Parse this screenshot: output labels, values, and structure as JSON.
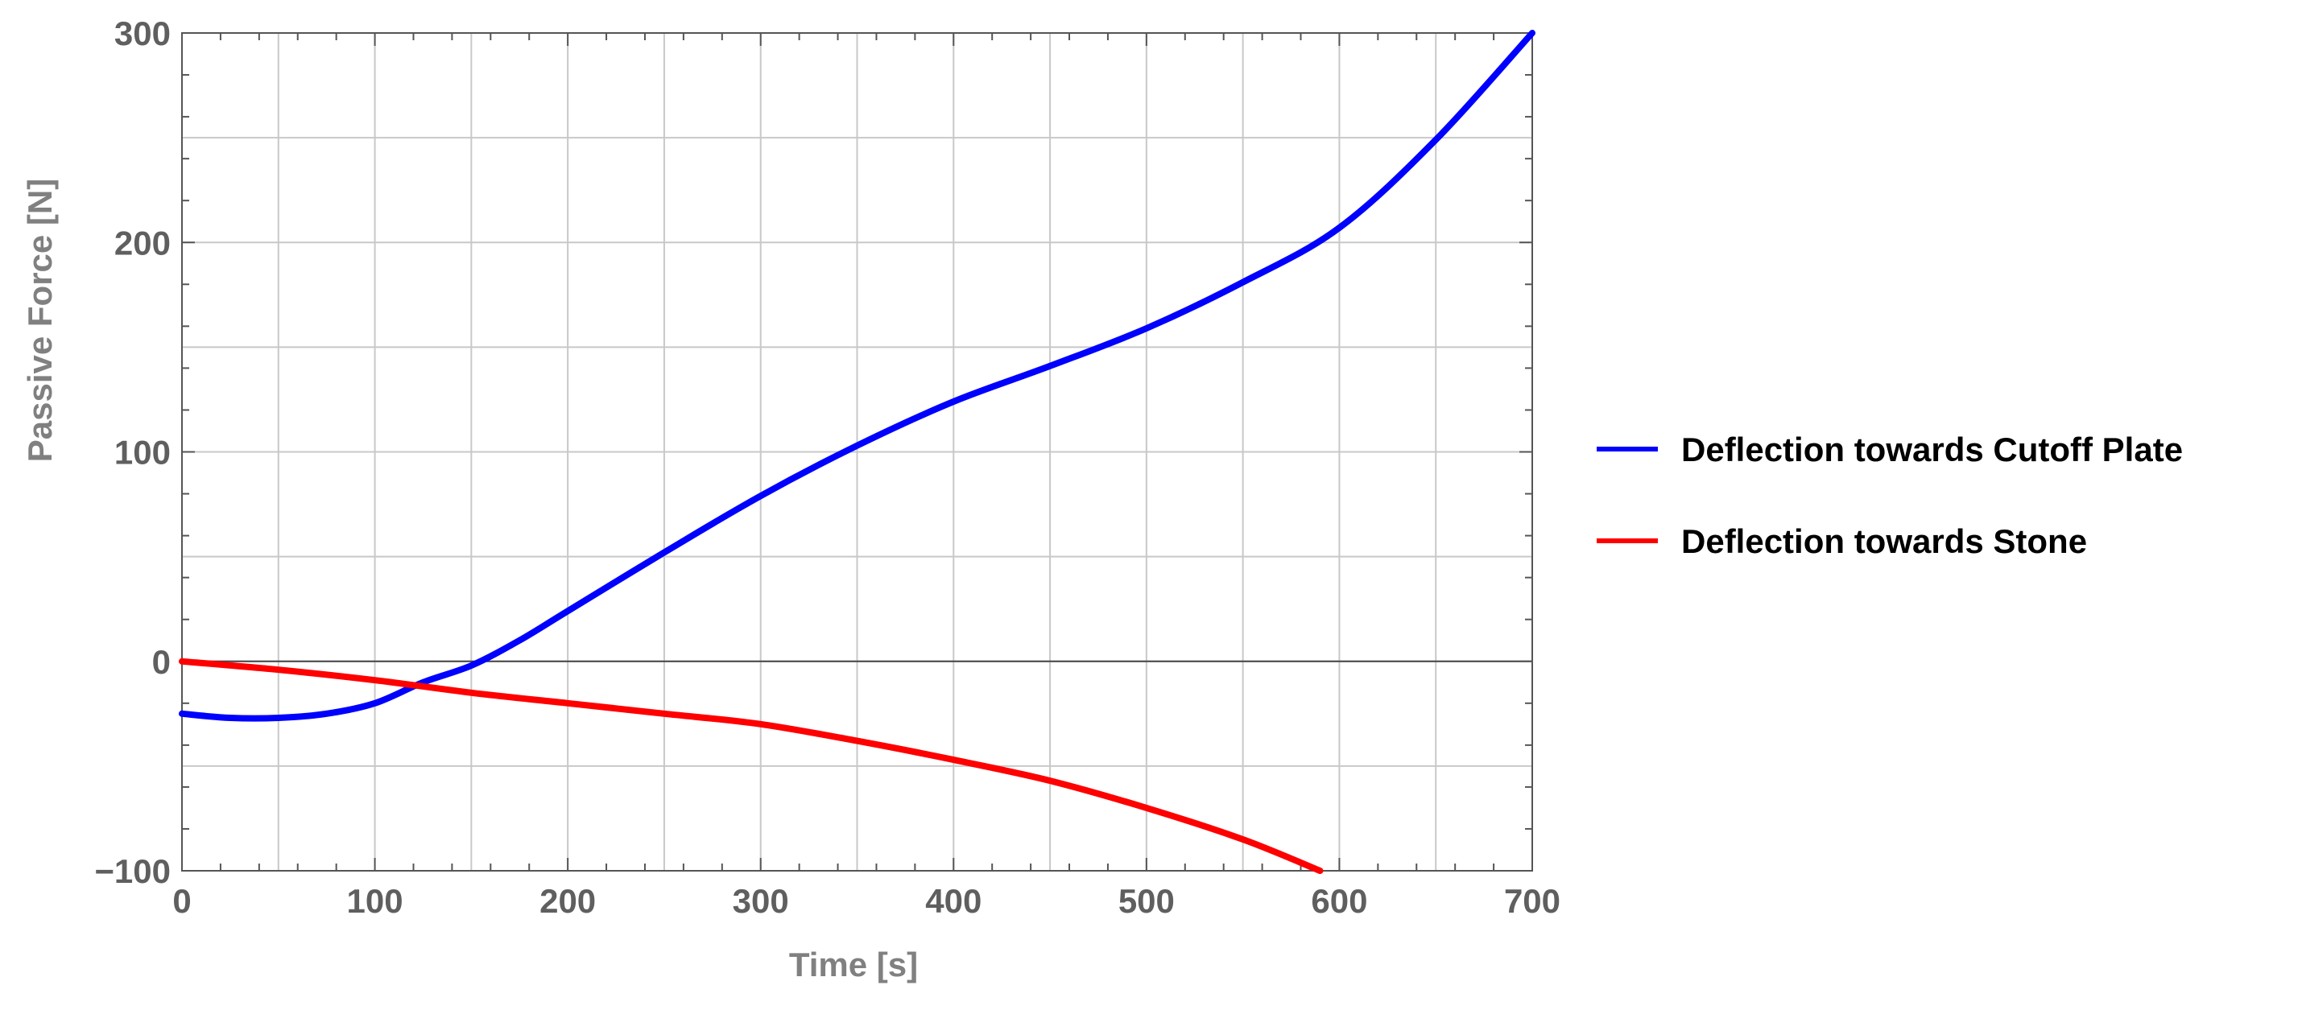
{
  "chart_data": {
    "type": "line",
    "title": "",
    "xlabel": "Time [s]",
    "ylabel": "Passive Force [N]",
    "xlim": [
      0,
      700
    ],
    "ylim": [
      -100,
      300
    ],
    "x_ticks": [
      "0",
      "100",
      "200",
      "300",
      "400",
      "500",
      "600",
      "700"
    ],
    "y_ticks": [
      "−100",
      "0",
      "100",
      "200",
      "300"
    ],
    "grid": true,
    "legend_position": "right",
    "series": [
      {
        "name": "Deflection towards Cutoff Plate",
        "color": "#0000ff",
        "x": [
          0,
          25,
          50,
          75,
          100,
          125,
          150,
          175,
          200,
          250,
          300,
          350,
          400,
          450,
          500,
          550,
          600,
          650,
          700
        ],
        "y": [
          -25,
          -27,
          -27,
          -25,
          -20,
          -10,
          -2,
          10,
          24,
          52,
          79,
          103,
          124,
          141,
          159,
          181,
          207,
          249,
          300
        ]
      },
      {
        "name": "Deflection towards Stone",
        "color": "#ff0000",
        "x": [
          0,
          50,
          100,
          150,
          200,
          250,
          300,
          350,
          400,
          450,
          500,
          550,
          590
        ],
        "y": [
          0,
          -4,
          -9,
          -15,
          -20,
          -25,
          -30,
          -38,
          -47,
          -57,
          -70,
          -85,
          -100
        ]
      }
    ]
  }
}
